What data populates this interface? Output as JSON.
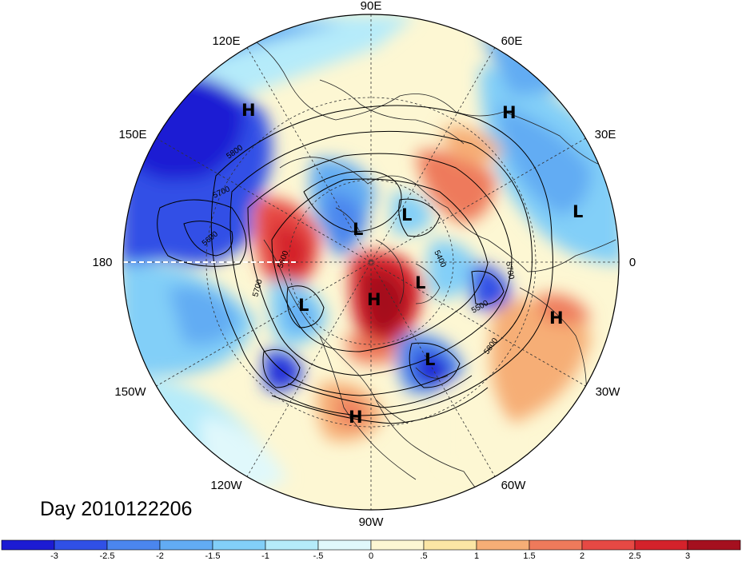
{
  "title": "Day 2010122206",
  "longitude_labels": [
    "90E",
    "60E",
    "30E",
    "0",
    "30W",
    "60W",
    "90W",
    "120W",
    "150W",
    "180",
    "150E",
    "120E"
  ],
  "pressure_centers": [
    {
      "label": "H",
      "region": "east-siberia"
    },
    {
      "label": "H",
      "region": "west-siberia"
    },
    {
      "label": "L",
      "region": "caspian"
    },
    {
      "label": "L",
      "region": "arctic-east"
    },
    {
      "label": "L",
      "region": "arctic-greenland-north"
    },
    {
      "label": "L",
      "region": "arctic-center"
    },
    {
      "label": "H",
      "region": "greenland"
    },
    {
      "label": "L",
      "region": "alaska-gulf"
    },
    {
      "label": "H",
      "region": "north-africa"
    },
    {
      "label": "L",
      "region": "north-atlantic"
    },
    {
      "label": "H",
      "region": "mexico"
    }
  ],
  "contour_labels": [
    "5800",
    "5700",
    "5600",
    "5500",
    "5400",
    "5700",
    "5700",
    "5500",
    "5800"
  ],
  "colorbar": {
    "tick_labels": [
      "-3",
      "-2.5",
      "-2",
      "-1.5",
      "-1",
      "-.5",
      "0",
      ".5",
      "1",
      "1.5",
      "2",
      "2.5",
      "3"
    ],
    "colors": [
      "#1c1bd3",
      "#3050e6",
      "#4b86ee",
      "#62acf3",
      "#82cff8",
      "#b5ebfa",
      "#e0f8fb",
      "#fdf7d3",
      "#fbe6a5",
      "#f6ae76",
      "#ee7a5b",
      "#e64944",
      "#d4222b",
      "#a5101f"
    ]
  }
}
